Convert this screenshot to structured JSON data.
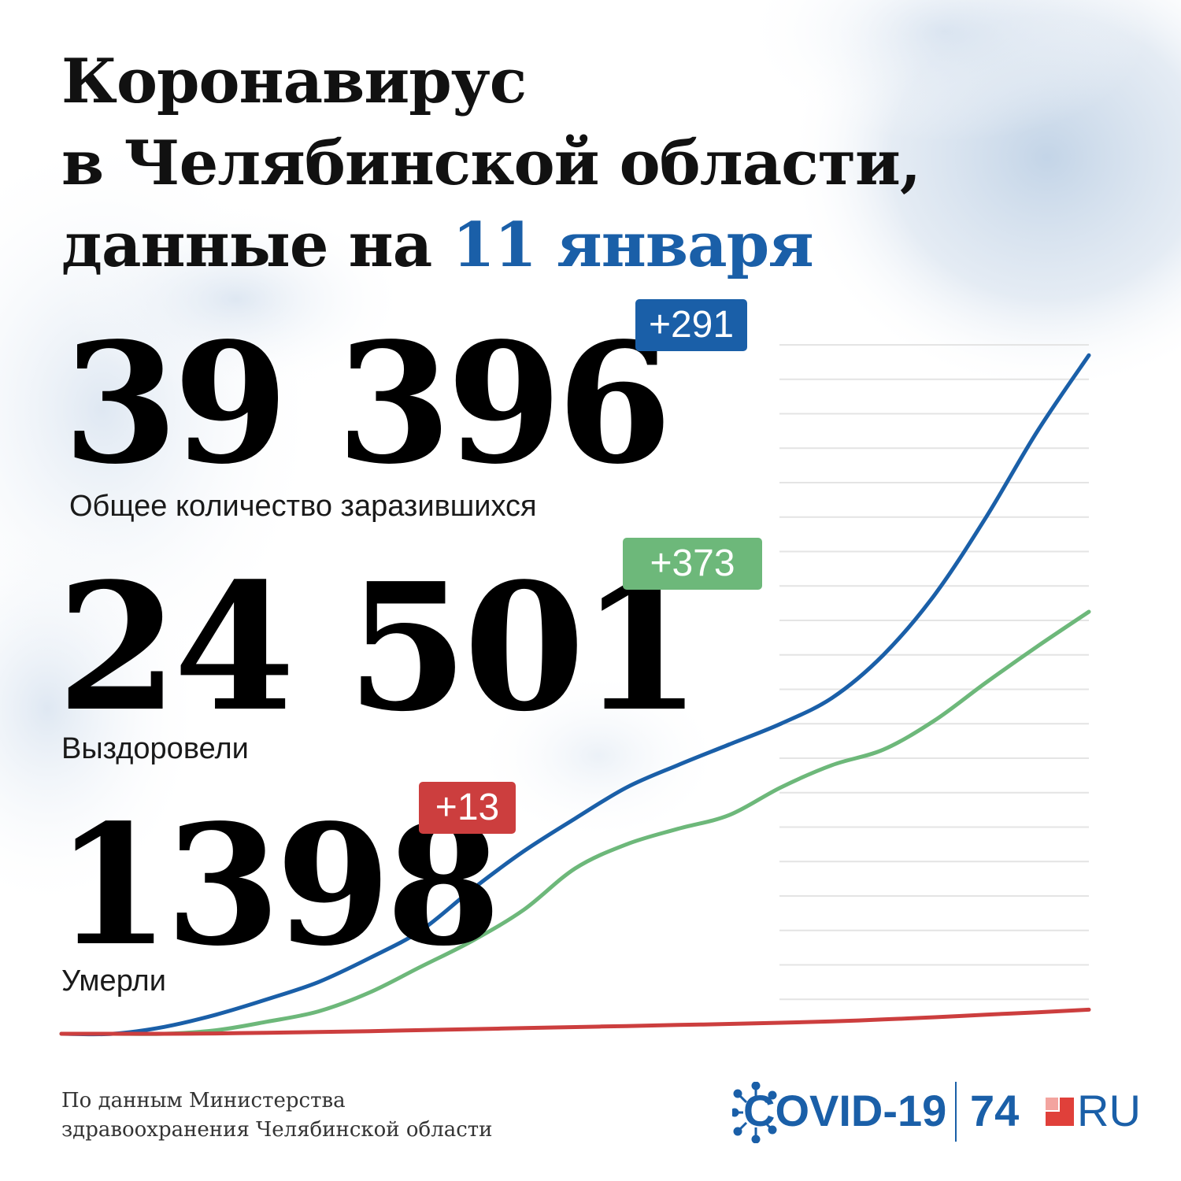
{
  "title": {
    "line1": "Коронавирус",
    "line2": "в Челябинской области,",
    "line3_prefix": "данные на ",
    "line3_accent": "11 января"
  },
  "stats": {
    "infected": {
      "value": "39 396",
      "delta": "+291",
      "label": "Общее количество заразившихся",
      "color": "#1a5fa8"
    },
    "recovered": {
      "value": "24 501",
      "delta": "+373",
      "label": "Выздоровели",
      "color": "#6db87a"
    },
    "deaths": {
      "value": "1398",
      "delta": "+13",
      "label": "Умерли",
      "color": "#cc3e3e"
    }
  },
  "source": {
    "line1": "По данным Министерства",
    "line2": "здравоохранения Челябинской области"
  },
  "logo": {
    "covid": "COVID-19",
    "site_number": "74",
    "site_suffix": "RU",
    "color": "#1a5fa8",
    "accent_color": "#e0403a"
  },
  "chart_data": {
    "type": "line",
    "title": "",
    "xlabel": "",
    "ylabel": "",
    "ylim": [
      0,
      40000
    ],
    "grid": true,
    "x": [
      0,
      5,
      10,
      15,
      20,
      25,
      30,
      35,
      40,
      45,
      50,
      55,
      60,
      65,
      70,
      75,
      80,
      85,
      90,
      95,
      100
    ],
    "series": [
      {
        "name": "Общее количество заразившихся",
        "color": "#1a5fa8",
        "values": [
          0,
          0,
          400,
          1100,
          2000,
          3000,
          4400,
          6000,
          8400,
          10600,
          12500,
          14300,
          15600,
          16800,
          18000,
          19500,
          22000,
          25500,
          30000,
          35000,
          39396
        ]
      },
      {
        "name": "Выздоровели",
        "color": "#6db87a",
        "values": [
          0,
          0,
          0,
          200,
          700,
          1300,
          2400,
          3900,
          5400,
          7200,
          9600,
          11000,
          11900,
          12700,
          14300,
          15600,
          16500,
          18200,
          20400,
          22500,
          24501
        ]
      },
      {
        "name": "Умерли",
        "color": "#cc3e3e",
        "values": [
          0,
          0,
          0,
          20,
          60,
          100,
          150,
          210,
          270,
          330,
          390,
          450,
          510,
          570,
          640,
          720,
          830,
          960,
          1110,
          1250,
          1398
        ]
      }
    ]
  }
}
